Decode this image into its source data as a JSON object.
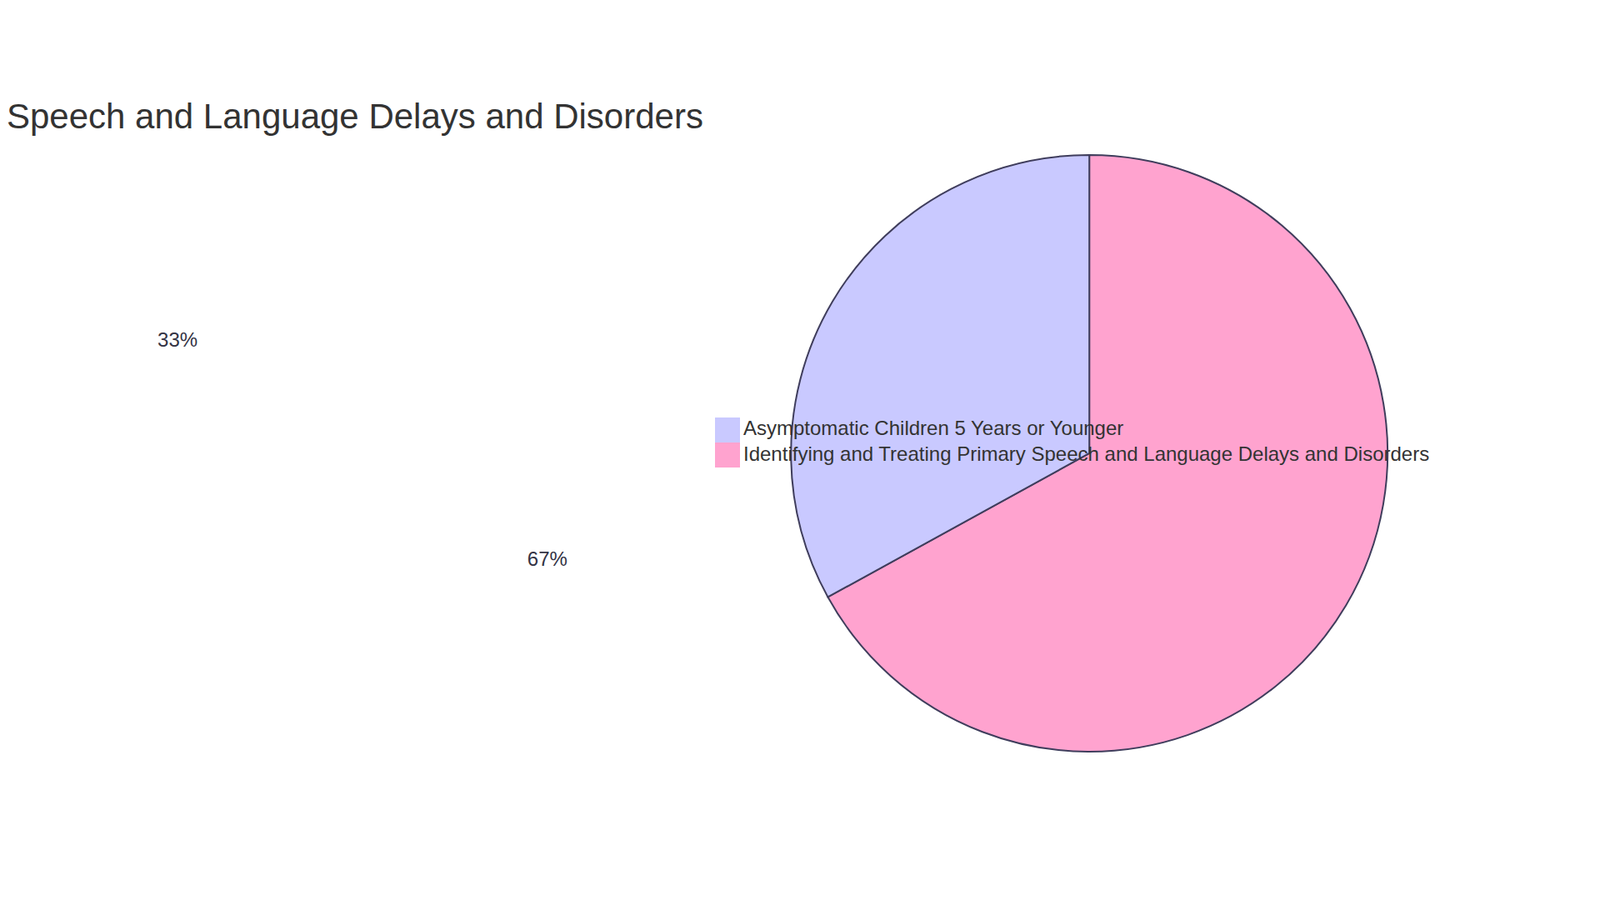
{
  "chart_data": {
    "type": "pie",
    "title": "Speech and Language Delays and Disorders",
    "categories": [
      "Identifying and Treating Primary Speech and Language Delays and Disorders",
      "Asymptomatic Children 5 Years or Younger"
    ],
    "values": [
      67,
      33
    ],
    "value_labels": [
      "67%",
      "33%"
    ],
    "colors": [
      "#ffa3cf",
      "#c9c9ff"
    ],
    "data_labels": true,
    "legend": "right"
  }
}
